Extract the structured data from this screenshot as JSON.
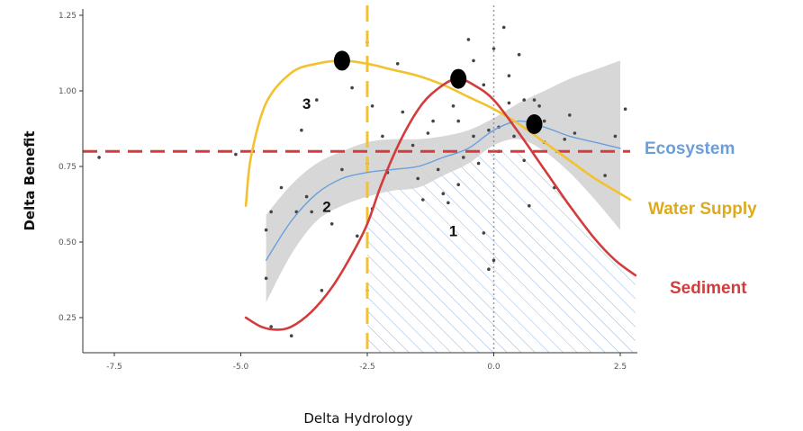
{
  "chart_data": {
    "type": "line",
    "title": "",
    "xlabel": "Delta Hydrology",
    "ylabel": "Delta Benefit",
    "xlim": [
      -8.6,
      2.9
    ],
    "ylim": [
      0.02,
      1.28
    ],
    "x_ticks": [
      -7.5,
      -5.0,
      -2.5,
      0.0,
      2.5
    ],
    "x_tick_labels": [
      "-7.5",
      "-5.0",
      "-2.5",
      "0.0",
      "2.5"
    ],
    "y_ticks": [
      0.25,
      0.5,
      0.75,
      1.0,
      1.25
    ],
    "y_tick_labels": [
      "0.25",
      "0.50",
      "0.75",
      "1.00",
      "1.25"
    ],
    "grid": false,
    "series": [
      {
        "name": "Ecosystem",
        "color": "#6a9fdc",
        "x": [
          -4.5,
          -4.0,
          -3.5,
          -3.0,
          -2.5,
          -2.0,
          -1.5,
          -1.0,
          -0.5,
          0.0,
          0.5,
          1.0,
          1.5,
          2.0,
          2.5
        ],
        "y": [
          0.44,
          0.57,
          0.66,
          0.71,
          0.73,
          0.74,
          0.75,
          0.78,
          0.81,
          0.87,
          0.9,
          0.88,
          0.85,
          0.83,
          0.81
        ],
        "band_lower": [
          0.3,
          0.46,
          0.57,
          0.62,
          0.65,
          0.67,
          0.68,
          0.72,
          0.76,
          0.82,
          0.84,
          0.8,
          0.73,
          0.64,
          0.54
        ],
        "band_upper": [
          0.59,
          0.69,
          0.76,
          0.8,
          0.83,
          0.84,
          0.84,
          0.85,
          0.87,
          0.91,
          0.96,
          1.0,
          1.04,
          1.07,
          1.1
        ]
      },
      {
        "name": "Water Supply",
        "color": "#f2c230",
        "x": [
          -4.9,
          -4.8,
          -4.5,
          -4.0,
          -3.5,
          -3.0,
          -2.5,
          -2.0,
          -1.5,
          -1.0,
          -0.5,
          0.0,
          0.5,
          1.0,
          1.5,
          2.0,
          2.7
        ],
        "y": [
          0.62,
          0.78,
          0.96,
          1.06,
          1.09,
          1.1,
          1.09,
          1.07,
          1.05,
          1.02,
          0.98,
          0.94,
          0.89,
          0.83,
          0.77,
          0.71,
          0.64
        ]
      },
      {
        "name": "Sediment",
        "color": "#d23c3c",
        "x": [
          -4.9,
          -4.6,
          -4.3,
          -4.0,
          -3.6,
          -3.2,
          -2.8,
          -2.5,
          -2.2,
          -1.8,
          -1.4,
          -1.0,
          -0.7,
          -0.4,
          0.0,
          0.5,
          1.0,
          1.5,
          2.0,
          2.4,
          2.8
        ],
        "y": [
          0.25,
          0.22,
          0.21,
          0.22,
          0.27,
          0.35,
          0.46,
          0.56,
          0.7,
          0.85,
          0.96,
          1.02,
          1.04,
          1.02,
          0.97,
          0.86,
          0.74,
          0.62,
          0.51,
          0.44,
          0.39
        ]
      }
    ],
    "thresholds": [
      {
        "axis": "y",
        "value": 0.8,
        "color": "#d23c3c",
        "style": "dashed"
      },
      {
        "axis": "x",
        "value": -2.5,
        "color": "#f2c230",
        "style": "dashed"
      },
      {
        "axis": "x",
        "value": 0.0,
        "color": "#999999",
        "style": "dotted"
      }
    ],
    "points": [
      {
        "x": -7.8,
        "y": 0.78
      },
      {
        "x": -5.1,
        "y": 0.79
      },
      {
        "x": -4.5,
        "y": 0.54
      },
      {
        "x": -4.4,
        "y": 0.6
      },
      {
        "x": -4.5,
        "y": 0.38
      },
      {
        "x": -4.4,
        "y": 0.22
      },
      {
        "x": -4.0,
        "y": 0.19
      },
      {
        "x": -4.2,
        "y": 0.68
      },
      {
        "x": -3.9,
        "y": 0.6
      },
      {
        "x": -3.7,
        "y": 0.65
      },
      {
        "x": -3.6,
        "y": 0.6
      },
      {
        "x": -3.8,
        "y": 0.87
      },
      {
        "x": -3.5,
        "y": 0.97
      },
      {
        "x": -3.4,
        "y": 0.34
      },
      {
        "x": -3.2,
        "y": 0.56
      },
      {
        "x": -3.0,
        "y": 0.74
      },
      {
        "x": -2.8,
        "y": 1.01
      },
      {
        "x": -2.7,
        "y": 0.52
      },
      {
        "x": -2.5,
        "y": 1.16
      },
      {
        "x": -2.4,
        "y": 0.95
      },
      {
        "x": -2.5,
        "y": 0.76
      },
      {
        "x": -2.4,
        "y": 0.61
      },
      {
        "x": -2.5,
        "y": 0.34
      },
      {
        "x": -2.2,
        "y": 0.85
      },
      {
        "x": -2.1,
        "y": 0.73
      },
      {
        "x": -1.9,
        "y": 1.09
      },
      {
        "x": -1.8,
        "y": 0.93
      },
      {
        "x": -1.6,
        "y": 0.82
      },
      {
        "x": -1.5,
        "y": 0.71
      },
      {
        "x": -1.4,
        "y": 0.64
      },
      {
        "x": -1.3,
        "y": 0.86
      },
      {
        "x": -1.2,
        "y": 0.9
      },
      {
        "x": -1.1,
        "y": 0.74
      },
      {
        "x": -1.0,
        "y": 0.66
      },
      {
        "x": -0.9,
        "y": 0.63
      },
      {
        "x": -0.8,
        "y": 0.95
      },
      {
        "x": -0.7,
        "y": 0.9
      },
      {
        "x": -0.7,
        "y": 0.69
      },
      {
        "x": -0.6,
        "y": 0.78
      },
      {
        "x": -0.5,
        "y": 1.17
      },
      {
        "x": -0.4,
        "y": 1.1
      },
      {
        "x": -0.4,
        "y": 0.85
      },
      {
        "x": -0.3,
        "y": 0.76
      },
      {
        "x": -0.2,
        "y": 0.53
      },
      {
        "x": -0.2,
        "y": 1.02
      },
      {
        "x": -0.1,
        "y": 0.87
      },
      {
        "x": -0.1,
        "y": 0.41
      },
      {
        "x": 0.0,
        "y": 1.14
      },
      {
        "x": 0.0,
        "y": 0.44
      },
      {
        "x": 0.1,
        "y": 0.88
      },
      {
        "x": 0.1,
        "y": 0.8
      },
      {
        "x": 0.2,
        "y": 1.21
      },
      {
        "x": 0.3,
        "y": 1.05
      },
      {
        "x": 0.3,
        "y": 0.96
      },
      {
        "x": 0.4,
        "y": 0.85
      },
      {
        "x": 0.5,
        "y": 1.12
      },
      {
        "x": 0.6,
        "y": 0.97
      },
      {
        "x": 0.6,
        "y": 0.77
      },
      {
        "x": 0.7,
        "y": 0.62
      },
      {
        "x": 0.8,
        "y": 0.97
      },
      {
        "x": 0.9,
        "y": 0.95
      },
      {
        "x": 1.0,
        "y": 0.9
      },
      {
        "x": 1.0,
        "y": 0.83
      },
      {
        "x": 1.2,
        "y": 0.68
      },
      {
        "x": 1.4,
        "y": 0.84
      },
      {
        "x": 1.5,
        "y": 0.92
      },
      {
        "x": 1.6,
        "y": 0.86
      },
      {
        "x": 2.2,
        "y": 0.72
      },
      {
        "x": 2.4,
        "y": 0.85
      },
      {
        "x": 2.6,
        "y": 0.94
      }
    ],
    "optima": [
      {
        "series": "Water Supply",
        "x": -3.0,
        "y": 1.1
      },
      {
        "series": "Sediment",
        "x": -0.7,
        "y": 1.04
      },
      {
        "series": "Ecosystem",
        "x": 0.8,
        "y": 0.89
      }
    ],
    "region_labels": [
      {
        "text": "1",
        "x": -0.8,
        "y": 0.52
      },
      {
        "text": "2",
        "x": -3.3,
        "y": 0.6
      },
      {
        "text": "3",
        "x": -3.7,
        "y": 0.94
      }
    ],
    "hatched_region": {
      "x_from": -2.5,
      "upper_series": "Sediment",
      "ceiling": 0.8
    }
  }
}
